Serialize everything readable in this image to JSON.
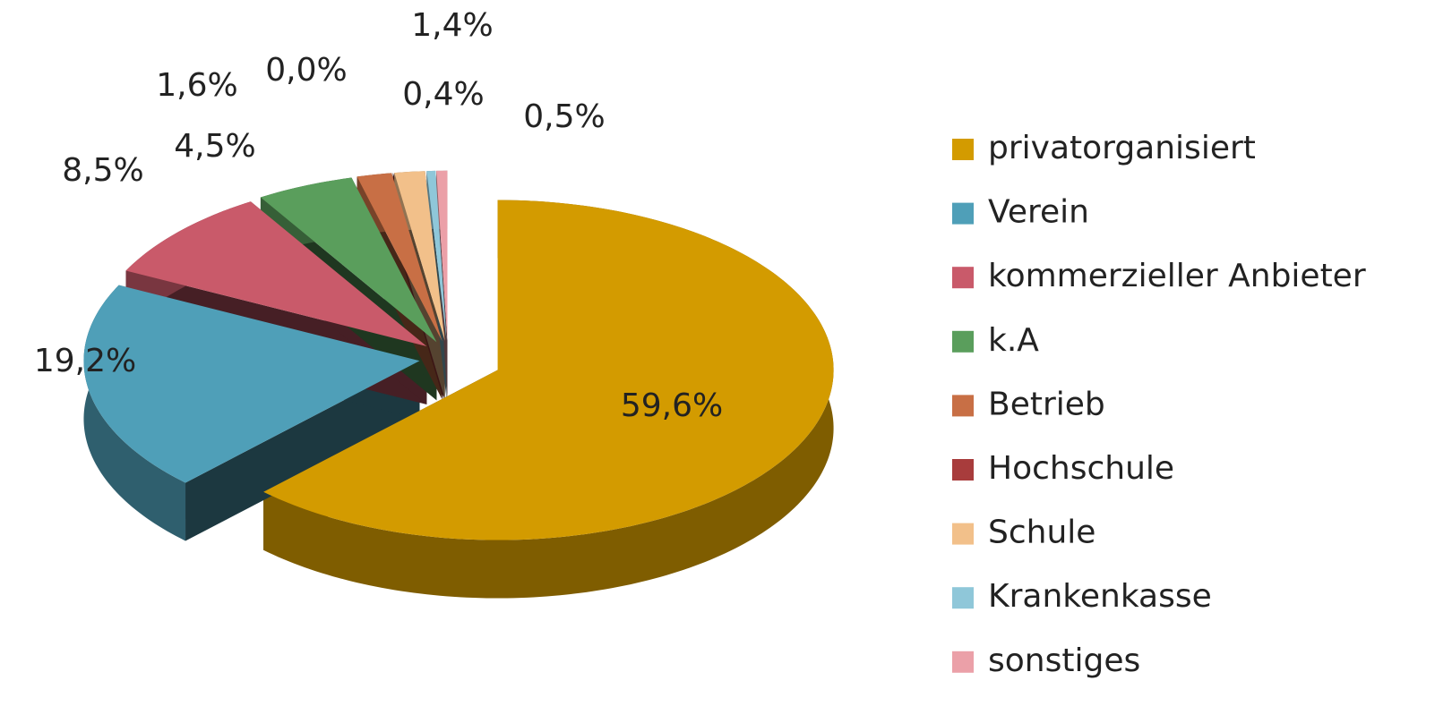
{
  "chart_data": {
    "type": "pie",
    "categories": [
      "privatorganisiert",
      "Verein",
      "kommerzieller Anbieter",
      "k.A",
      "Betrieb",
      "Hochschule",
      "Schule",
      "Krankenkasse",
      "sonstiges"
    ],
    "values": [
      59.6,
      19.2,
      8.5,
      4.5,
      1.6,
      0.0,
      1.4,
      0.4,
      0.5
    ],
    "value_labels": [
      "59,6%",
      "19,2%",
      "8,5%",
      "4,5%",
      "1,6%",
      "0,0%",
      "1,4%",
      "0,4%",
      "0,5%"
    ],
    "colors": [
      "#d39b00",
      "#4f9fb8",
      "#c95a6a",
      "#5a9e5c",
      "#c86f45",
      "#a83c3c",
      "#f2c08a",
      "#8fc7d9",
      "#eba0a8"
    ],
    "legend": "right"
  }
}
